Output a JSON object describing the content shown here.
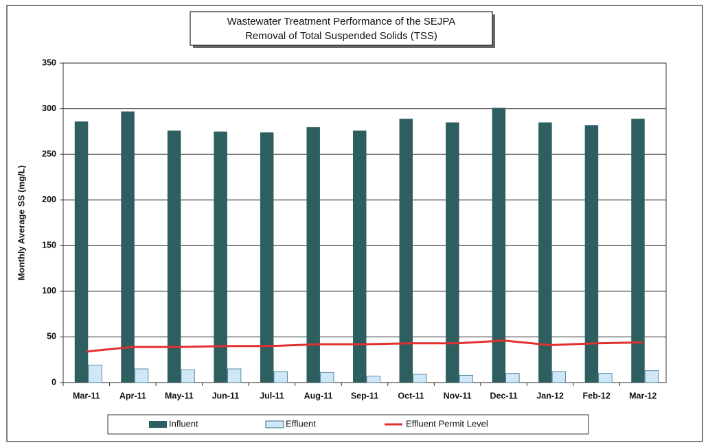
{
  "chart_data": {
    "type": "bar",
    "title": "Wastewater Treatment Performance of the SEJPA",
    "subtitle": "Removal of Total Suspended Solids (TSS)",
    "y_label": "Monthly Average SS (mg/L)",
    "categories": [
      "Mar-11",
      "Apr-11",
      "May-11",
      "Jun-11",
      "Jul-11",
      "Aug-11",
      "Sep-11",
      "Oct-11",
      "Nov-11",
      "Dec-11",
      "Jan-12",
      "Feb-12",
      "Mar-12"
    ],
    "series": [
      {
        "name": "Influent",
        "type": "bar",
        "color": "#2d5e60",
        "values": [
          286,
          297,
          276,
          275,
          274,
          280,
          276,
          289,
          285,
          301,
          285,
          282,
          289
        ]
      },
      {
        "name": "Effluent",
        "type": "bar",
        "color": "#cfe8f7",
        "values": [
          19,
          15,
          14,
          15,
          12,
          11,
          7,
          9,
          8,
          10,
          12,
          10,
          13
        ]
      },
      {
        "name": "Effluent Permit Level",
        "type": "line",
        "color": "#e0302f",
        "values": [
          34,
          39,
          39,
          40,
          40,
          42,
          42,
          43,
          43,
          46,
          41,
          43,
          44
        ]
      }
    ],
    "ylim": [
      0,
      350
    ],
    "yticks": [
      0,
      50,
      100,
      150,
      200,
      250,
      300,
      350
    ],
    "grid": true,
    "legend": "bottom"
  }
}
